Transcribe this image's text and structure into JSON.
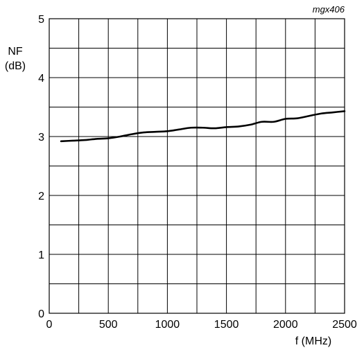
{
  "figure_id": "mgx406",
  "chart_data": {
    "type": "line",
    "title": "",
    "xlabel": "f (MHz)",
    "ylabel_line1": "NF",
    "ylabel_line2": "(dB)",
    "xlim": [
      0,
      2500
    ],
    "ylim": [
      0,
      5
    ],
    "x_ticks": [
      0,
      500,
      1000,
      1500,
      2000,
      2500
    ],
    "y_ticks": [
      0,
      1,
      2,
      3,
      4,
      5
    ],
    "x_ticks_labels": [
      "0",
      "500",
      "1000",
      "1500",
      "2000",
      "2500"
    ],
    "y_ticks_labels": [
      "0",
      "1",
      "2",
      "3",
      "4",
      "5"
    ],
    "x_grid_step": 250,
    "y_grid_step": 0.5,
    "grid": true,
    "legend": "none",
    "series": [
      {
        "x": [
          100,
          200,
          300,
          400,
          500,
          600,
          700,
          800,
          900,
          1000,
          1100,
          1200,
          1300,
          1400,
          1500,
          1600,
          1700,
          1800,
          1900,
          2000,
          2100,
          2200,
          2300,
          2400,
          2500
        ],
        "y": [
          2.92,
          2.93,
          2.94,
          2.96,
          2.97,
          3.0,
          3.04,
          3.07,
          3.08,
          3.09,
          3.12,
          3.15,
          3.15,
          3.14,
          3.16,
          3.17,
          3.2,
          3.25,
          3.25,
          3.3,
          3.31,
          3.35,
          3.39,
          3.41,
          3.43
        ]
      }
    ]
  }
}
